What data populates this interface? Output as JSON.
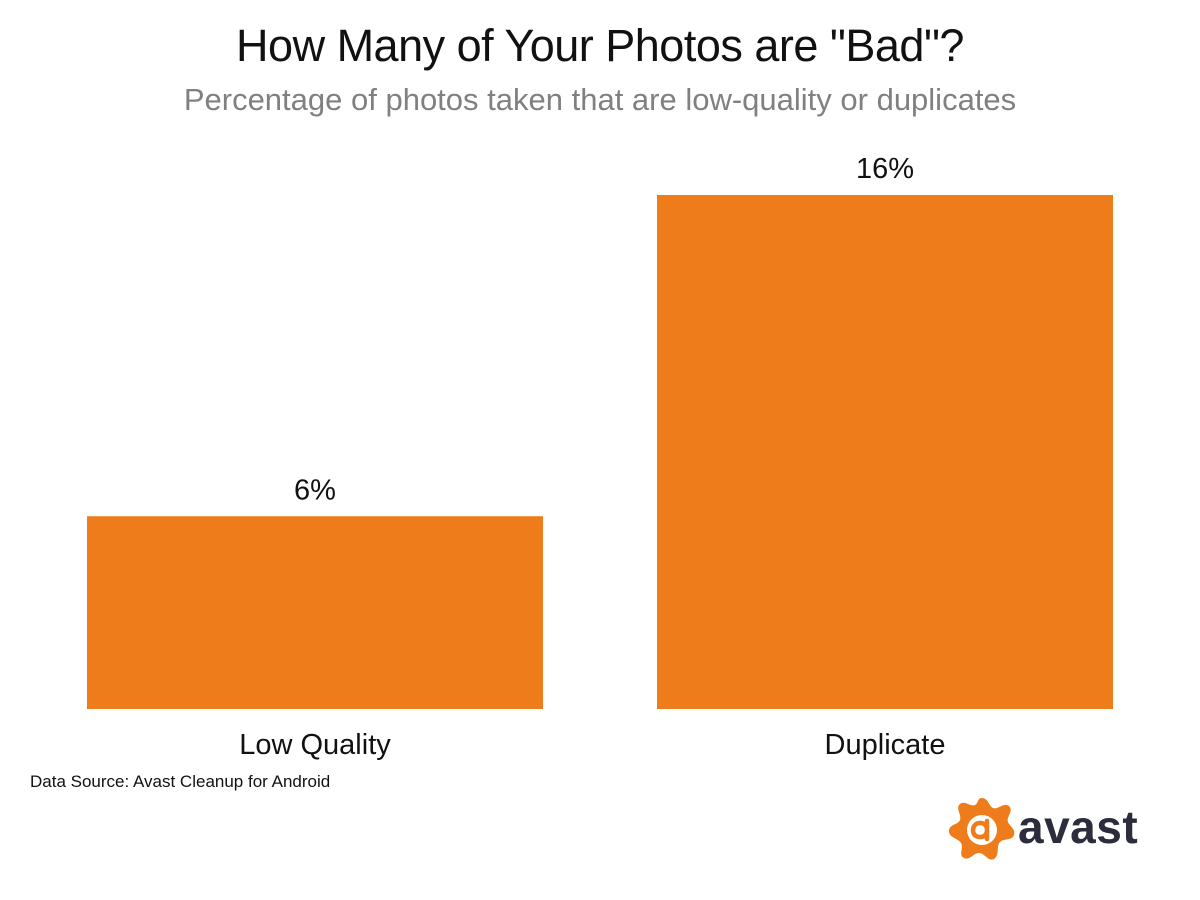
{
  "chart_data": {
    "type": "bar",
    "title": "How Many of Your Photos are \"Bad\"?",
    "subtitle": "Percentage of photos taken that are low-quality or duplicates",
    "categories": [
      "Low Quality",
      "Duplicate"
    ],
    "values": [
      6,
      16
    ],
    "data_labels": [
      "6%",
      "16%"
    ],
    "unit": "%",
    "xlabel": "",
    "ylabel": "",
    "ylim": [
      0,
      16
    ],
    "grid": false,
    "bar_color": "#ee7c1a",
    "source": "Data Source: Avast Cleanup for Android"
  },
  "brand": {
    "name": "avast",
    "logo_icon": "avast-splash-icon",
    "accent_color": "#ee7c1a",
    "text_color": "#2b2d3c"
  }
}
